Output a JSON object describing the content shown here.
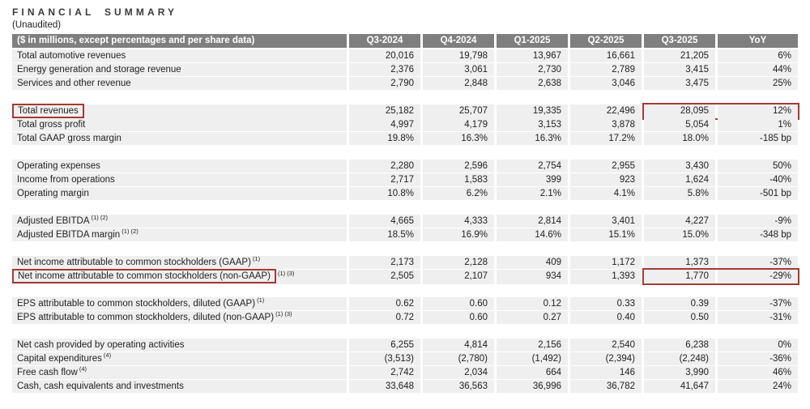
{
  "page": {
    "title": "FINANCIAL SUMMARY",
    "subtitle": "(Unaudited)"
  },
  "colors": {
    "header_background": "#7f7f7f",
    "header_text": "#ffffff",
    "row_background": "#efefef",
    "column_highlight_pink": "#ecd8d6",
    "callout_box_red": "#a33b35"
  },
  "table": {
    "header": {
      "label": "($ in millions, except percentages and per share data)",
      "columns": [
        "Q3-2024",
        "Q4-2024",
        "Q1-2025",
        "Q2-2025",
        "Q3-2025",
        "YoY"
      ],
      "highlighted_column": "Q3-2025"
    },
    "groups": [
      {
        "rows": [
          {
            "label": "Total automotive revenues",
            "values": [
              "20,016",
              "19,798",
              "13,967",
              "16,661",
              "21,205",
              "6%"
            ]
          },
          {
            "label": "Energy generation and storage revenue",
            "values": [
              "2,376",
              "3,061",
              "2,730",
              "2,789",
              "3,415",
              "44%"
            ]
          },
          {
            "label": "Services and other revenue",
            "values": [
              "2,790",
              "2,848",
              "2,638",
              "3,046",
              "3,475",
              "25%"
            ]
          }
        ]
      },
      {
        "rows": [
          {
            "label": "Total revenues",
            "boxed_label": true,
            "boxed_values": true,
            "values": [
              "25,182",
              "25,707",
              "19,335",
              "22,496",
              "28,095",
              "12%"
            ]
          },
          {
            "label": "Total gross profit",
            "values": [
              "4,997",
              "4,179",
              "3,153",
              "3,878",
              "5,054",
              "1%"
            ]
          },
          {
            "label": "Total GAAP gross margin",
            "values": [
              "19.8%",
              "16.3%",
              "16.3%",
              "17.2%",
              "18.0%",
              "-185 bp"
            ]
          }
        ]
      },
      {
        "rows": [
          {
            "label": "Operating expenses",
            "values": [
              "2,280",
              "2,596",
              "2,754",
              "2,955",
              "3,430",
              "50%"
            ]
          },
          {
            "label": "Income from operations",
            "values": [
              "2,717",
              "1,583",
              "399",
              "923",
              "1,624",
              "-40%"
            ]
          },
          {
            "label": "Operating margin",
            "values": [
              "10.8%",
              "6.2%",
              "2.1%",
              "4.1%",
              "5.8%",
              "-501 bp"
            ]
          }
        ]
      },
      {
        "rows": [
          {
            "label": "Adjusted EBITDA",
            "sup": "(1) (2)",
            "values": [
              "4,665",
              "4,333",
              "2,814",
              "3,401",
              "4,227",
              "-9%"
            ]
          },
          {
            "label": "Adjusted EBITDA margin",
            "sup": "(1) (2)",
            "values": [
              "18.5%",
              "16.9%",
              "14.6%",
              "15.1%",
              "15.0%",
              "-348 bp"
            ]
          }
        ]
      },
      {
        "rows": [
          {
            "label": "Net income attributable to common stockholders (GAAP)",
            "sup": "(1)",
            "values": [
              "2,173",
              "2,128",
              "409",
              "1,172",
              "1,373",
              "-37%"
            ]
          },
          {
            "label": "Net income attributable to common stockholders (non-GAAP)",
            "sup": "(1) (3)",
            "boxed_label": true,
            "boxed_values": true,
            "values": [
              "2,505",
              "2,107",
              "934",
              "1,393",
              "1,770",
              "-29%"
            ]
          }
        ]
      },
      {
        "rows": [
          {
            "label": "EPS attributable to common stockholders, diluted (GAAP)",
            "sup": "(1)",
            "values": [
              "0.62",
              "0.60",
              "0.12",
              "0.33",
              "0.39",
              "-37%"
            ]
          },
          {
            "label": "EPS attributable to common stockholders, diluted (non-GAAP)",
            "sup": "(1) (3)",
            "values": [
              "0.72",
              "0.60",
              "0.27",
              "0.40",
              "0.50",
              "-31%"
            ]
          }
        ]
      },
      {
        "rows": [
          {
            "label": "Net cash provided by operating activities",
            "values": [
              "6,255",
              "4,814",
              "2,156",
              "2,540",
              "6,238",
              "0%"
            ]
          },
          {
            "label": "Capital expenditures",
            "sup": "(4)",
            "values": [
              "(3,513)",
              "(2,780)",
              "(1,492)",
              "(2,394)",
              "(2,248)",
              "-36%"
            ]
          },
          {
            "label": "Free cash flow",
            "sup": "(4)",
            "values": [
              "2,742",
              "2,034",
              "664",
              "146",
              "3,990",
              "46%"
            ]
          },
          {
            "label": "Cash, cash equivalents and investments",
            "values": [
              "33,648",
              "36,563",
              "36,996",
              "36,782",
              "41,647",
              "24%"
            ]
          }
        ]
      }
    ]
  }
}
